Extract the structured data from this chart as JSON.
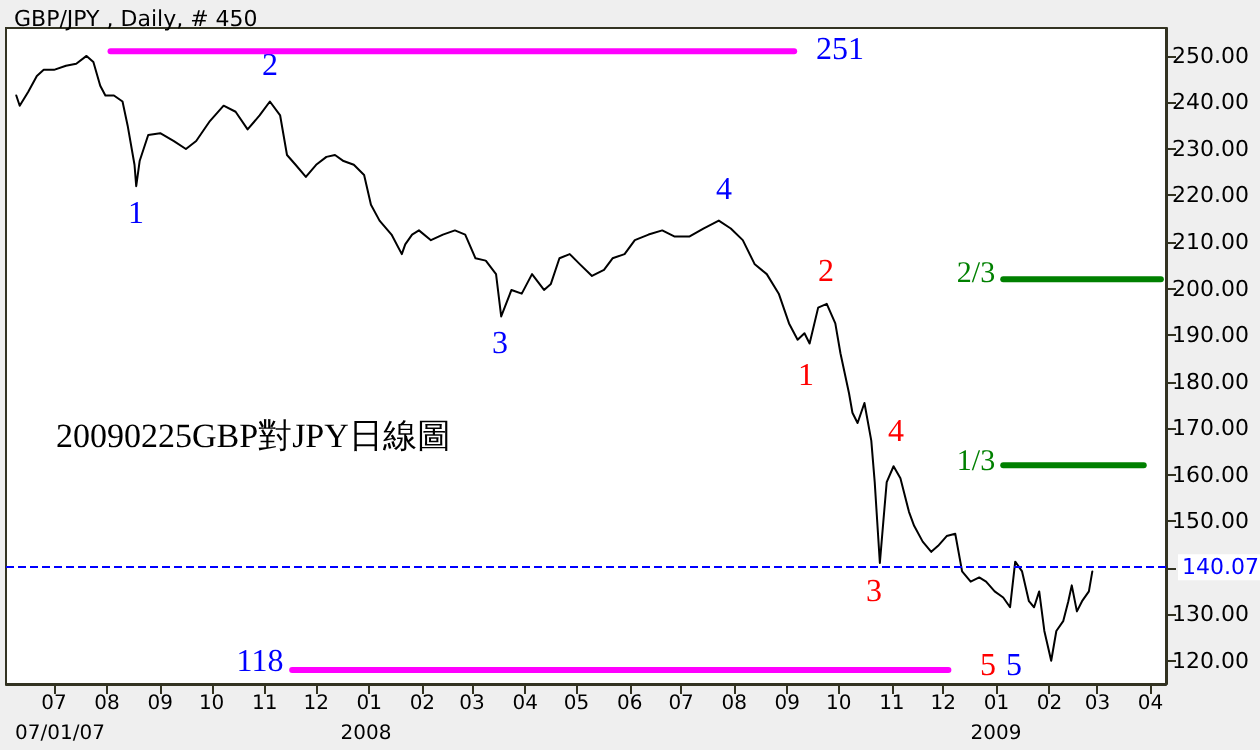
{
  "chart_data": {
    "type": "line",
    "title": "GBP/JPY , Daily, # 450",
    "grid": false,
    "marker": "none",
    "line_style": "solid",
    "xlim": [
      "2007-06-03",
      "2009-04-10"
    ],
    "xticks": [
      {
        "value": "2007-07-01",
        "label": "07"
      },
      {
        "value": "2007-08-01",
        "label": "08"
      },
      {
        "value": "2007-09-01",
        "label": "09"
      },
      {
        "value": "2007-10-01",
        "label": "10"
      },
      {
        "value": "2007-11-01",
        "label": "11"
      },
      {
        "value": "2007-12-01",
        "label": "12"
      },
      {
        "value": "2008-01-01",
        "label": "01"
      },
      {
        "value": "2008-02-01",
        "label": "02"
      },
      {
        "value": "2008-03-01",
        "label": "03"
      },
      {
        "value": "2008-04-01",
        "label": "04"
      },
      {
        "value": "2008-05-01",
        "label": "05"
      },
      {
        "value": "2008-06-01",
        "label": "06"
      },
      {
        "value": "2008-07-01",
        "label": "07"
      },
      {
        "value": "2008-08-01",
        "label": "08"
      },
      {
        "value": "2008-09-01",
        "label": "09"
      },
      {
        "value": "2008-10-01",
        "label": "10"
      },
      {
        "value": "2008-11-01",
        "label": "11"
      },
      {
        "value": "2008-12-01",
        "label": "12"
      },
      {
        "value": "2009-01-01",
        "label": "01"
      },
      {
        "value": "2009-02-01",
        "label": "02"
      },
      {
        "value": "2009-03-01",
        "label": "03"
      },
      {
        "value": "2009-04-01",
        "label": "04"
      }
    ],
    "ylim": [
      115,
      256
    ],
    "yticks": [
      {
        "value": 120,
        "label": "120.00"
      },
      {
        "value": 130,
        "label": "130.00"
      },
      {
        "value": 140,
        "label": null
      },
      {
        "value": 150,
        "label": "150.00"
      },
      {
        "value": 160,
        "label": "160.00"
      },
      {
        "value": 170,
        "label": "170.00"
      },
      {
        "value": 180,
        "label": "180.00"
      },
      {
        "value": 190,
        "label": "190.00"
      },
      {
        "value": 200,
        "label": "200.00"
      },
      {
        "value": 210,
        "label": "210.00"
      },
      {
        "value": 220,
        "label": "220.00"
      },
      {
        "value": 230,
        "label": "230.00"
      },
      {
        "value": 240,
        "label": "240.00"
      },
      {
        "value": 250,
        "label": "250.00"
      }
    ],
    "ref_lines": [
      {
        "axis": "y",
        "value": 140.07,
        "label": "140.07",
        "color": "#0000ff",
        "line_style": "dashed"
      }
    ],
    "series": [
      {
        "color": "#000000",
        "x": [
          "2007-06-09",
          "2007-06-11",
          "2007-06-16",
          "2007-06-21",
          "2007-06-25",
          "2007-07-01",
          "2007-07-08",
          "2007-07-14",
          "2007-07-20",
          "2007-07-24",
          "2007-07-28",
          "2007-07-31",
          "2007-08-05",
          "2007-08-10",
          "2007-08-13",
          "2007-08-17",
          "2007-08-18",
          "2007-08-20",
          "2007-08-25",
          "2007-09-01",
          "2007-09-09",
          "2007-09-16",
          "2007-09-22",
          "2007-09-30",
          "2007-10-08",
          "2007-10-15",
          "2007-10-22",
          "2007-10-29",
          "2007-11-04",
          "2007-11-10",
          "2007-11-14",
          "2007-11-19",
          "2007-11-25",
          "2007-12-01",
          "2007-12-07",
          "2007-12-12",
          "2007-12-17",
          "2007-12-23",
          "2007-12-29",
          "2008-01-02",
          "2008-01-07",
          "2008-01-14",
          "2008-01-20",
          "2008-01-22",
          "2008-01-26",
          "2008-01-30",
          "2008-02-06",
          "2008-02-13",
          "2008-02-20",
          "2008-02-26",
          "2008-03-03",
          "2008-03-09",
          "2008-03-15",
          "2008-03-18",
          "2008-03-24",
          "2008-03-30",
          "2008-04-05",
          "2008-04-12",
          "2008-04-16",
          "2008-04-21",
          "2008-04-27",
          "2008-05-03",
          "2008-05-10",
          "2008-05-17",
          "2008-05-22",
          "2008-05-29",
          "2008-06-04",
          "2008-06-12",
          "2008-06-20",
          "2008-06-27",
          "2008-07-06",
          "2008-07-14",
          "2008-07-23",
          "2008-07-30",
          "2008-08-06",
          "2008-08-13",
          "2008-08-20",
          "2008-08-27",
          "2008-09-02",
          "2008-09-07",
          "2008-09-11",
          "2008-09-14",
          "2008-09-19",
          "2008-09-24",
          "2008-09-29",
          "2008-10-02",
          "2008-10-07",
          "2008-10-09",
          "2008-10-12",
          "2008-10-16",
          "2008-10-20",
          "2008-10-22",
          "2008-10-25",
          "2008-10-27",
          "2008-10-29",
          "2008-11-02",
          "2008-11-06",
          "2008-11-11",
          "2008-11-14",
          "2008-11-19",
          "2008-11-24",
          "2008-11-28",
          "2008-12-03",
          "2008-12-08",
          "2008-12-12",
          "2008-12-17",
          "2008-12-22",
          "2008-12-26",
          "2008-12-31",
          "2009-01-05",
          "2009-01-09",
          "2009-01-12",
          "2009-01-16",
          "2009-01-20",
          "2009-01-23",
          "2009-01-26",
          "2009-01-29",
          "2009-02-02",
          "2009-02-05",
          "2009-02-09",
          "2009-02-12",
          "2009-02-14",
          "2009-02-17",
          "2009-02-20",
          "2009-02-24",
          "2009-02-26"
        ],
        "values": [
          241.5,
          239.3,
          242.3,
          245.7,
          247,
          247,
          247.9,
          248.3,
          250,
          248.7,
          243.6,
          241.5,
          241.5,
          240.2,
          235,
          226.6,
          222,
          227.4,
          233,
          233.4,
          231.7,
          230,
          231.7,
          236,
          239.3,
          238,
          234.2,
          237.2,
          240.2,
          237.2,
          228.7,
          226.6,
          224,
          226.6,
          228.3,
          228.7,
          227.4,
          226.6,
          224.4,
          218,
          214.6,
          211.6,
          207.4,
          209.5,
          211.6,
          212.5,
          210.4,
          211.6,
          212.5,
          211.6,
          206.5,
          206,
          203.1,
          194,
          199.7,
          198.9,
          203.1,
          199.7,
          201,
          206.5,
          207.4,
          205.2,
          202.7,
          204,
          206.5,
          207.4,
          210.4,
          211.6,
          212.5,
          211.2,
          211.2,
          212.9,
          214.6,
          212.9,
          210.4,
          205.2,
          203.1,
          198.9,
          192.5,
          189,
          190.4,
          188.2,
          195.9,
          196.7,
          192.5,
          186.1,
          177.5,
          173.3,
          171.1,
          175.4,
          167.3,
          158.4,
          141,
          149.8,
          158.4,
          161.8,
          159.2,
          152,
          149,
          145.6,
          143.4,
          144.7,
          146.8,
          147.3,
          139.2,
          137,
          137.9,
          137,
          134.9,
          133.6,
          131.5,
          141.3,
          139.2,
          132.8,
          131.5,
          134.9,
          126.4,
          120,
          126.4,
          128.5,
          132.8,
          136.2,
          130.6,
          132.8,
          134.9,
          139.2
        ]
      },
      {
        "color": "#ff00ff",
        "x": [
          "2007-08-03",
          "2008-09-05"
        ],
        "values": [
          251,
          251
        ]
      },
      {
        "color": "#ff00ff",
        "x": [
          "2007-11-17",
          "2008-12-04"
        ],
        "values": [
          118,
          118
        ]
      },
      {
        "color": "#008000",
        "x": [
          "2009-01-05",
          "2009-04-07"
        ],
        "values": [
          202,
          202
        ]
      },
      {
        "color": "#008000",
        "x": [
          "2009-01-05",
          "2009-03-28"
        ],
        "values": [
          162,
          162
        ]
      }
    ],
    "annotations": [
      "20090225GBP對JPY日線圖",
      "251",
      "118",
      "1",
      "2",
      "3",
      "4",
      "1",
      "2",
      "3",
      "4",
      "5",
      "5",
      "2/3",
      "1/3",
      "07/01/07",
      "2008",
      "2009"
    ]
  }
}
